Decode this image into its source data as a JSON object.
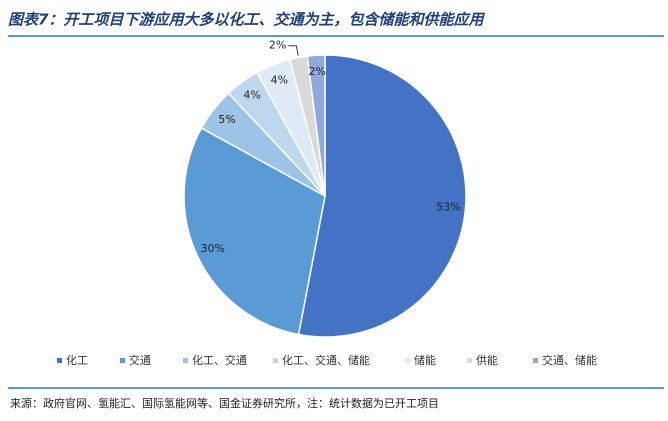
{
  "chart_data": {
    "type": "pie",
    "title": "图表7：开工项目下游应用大多以化工、交通为主，包含储能和供能应用",
    "categories": [
      "化工",
      "交通",
      "化工、交通",
      "化工、交通、储能",
      "储能",
      "供能",
      "交通、储能"
    ],
    "values": [
      53,
      30,
      5,
      4,
      4,
      2,
      2
    ],
    "value_labels": [
      "53%",
      "30%",
      "5%",
      "4%",
      "4%",
      "2%",
      "2%"
    ],
    "colors": [
      "#4472c4",
      "#5b9bd5",
      "#9dc3e6",
      "#bdd7ee",
      "#deebf7",
      "#d9d9d9",
      "#8ea9db"
    ],
    "source": "来源：政府官网、氢能汇、国际氢能网等、国金证券研究所，注：统计数据为已开工项目"
  }
}
